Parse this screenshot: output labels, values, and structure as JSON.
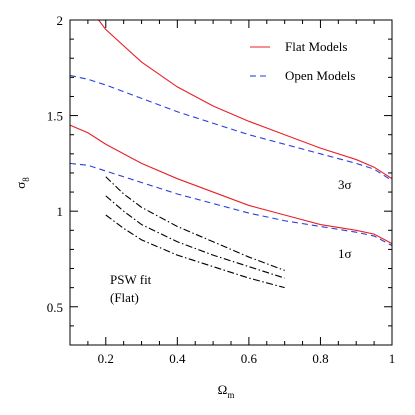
{
  "chart_data": {
    "type": "line",
    "title": "",
    "xlabel": "Ω",
    "xlabel_sub": "m",
    "ylabel": "σ",
    "ylabel_sub": "8",
    "xlim": [
      0.1,
      1.0
    ],
    "ylim": [
      0.3,
      2.0
    ],
    "xticks": [
      0.2,
      0.4,
      0.6,
      0.8,
      1.0
    ],
    "xtick_labels": [
      "0.2",
      "0.4",
      "0.6",
      "0.8",
      "1"
    ],
    "yticks": [
      0.5,
      1.0,
      1.5,
      2.0
    ],
    "ytick_labels": [
      "0.5",
      "1",
      "1.5",
      "2"
    ],
    "grid": false,
    "legend_position": "top-right",
    "legend": [
      {
        "label": "Flat Models",
        "color": "#e8202a",
        "dash": "solid"
      },
      {
        "label": "Open Models",
        "color": "#2a3fd8",
        "dash": "dashed"
      }
    ],
    "annotations": [
      {
        "text": "3σ",
        "x": 0.95,
        "y": 1.13
      },
      {
        "text": "1σ",
        "x": 0.95,
        "y": 0.83
      },
      {
        "text": "PSW fit",
        "x": 0.28,
        "y": 0.56
      },
      {
        "text": "(Flat)",
        "x": 0.28,
        "y": 0.47
      }
    ],
    "series": [
      {
        "group": "Flat Models",
        "level": "3σ",
        "color": "#e8202a",
        "dash": "solid",
        "x": [
          0.18,
          0.2,
          0.3,
          0.4,
          0.5,
          0.6,
          0.7,
          0.8,
          0.9,
          0.95,
          1.0
        ],
        "y": [
          2.0,
          1.95,
          1.78,
          1.65,
          1.55,
          1.47,
          1.4,
          1.33,
          1.27,
          1.23,
          1.17
        ]
      },
      {
        "group": "Flat Models",
        "level": "1σ",
        "color": "#e8202a",
        "dash": "solid",
        "x": [
          0.1,
          0.15,
          0.2,
          0.3,
          0.4,
          0.5,
          0.6,
          0.7,
          0.8,
          0.9,
          0.95,
          1.0
        ],
        "y": [
          1.45,
          1.41,
          1.35,
          1.25,
          1.17,
          1.1,
          1.03,
          0.98,
          0.93,
          0.9,
          0.88,
          0.83
        ]
      },
      {
        "group": "Open Models",
        "level": "3σ",
        "color": "#2a3fd8",
        "dash": "dashed",
        "x": [
          0.1,
          0.15,
          0.2,
          0.3,
          0.4,
          0.5,
          0.6,
          0.7,
          0.8,
          0.9,
          0.95,
          1.0
        ],
        "y": [
          1.71,
          1.69,
          1.66,
          1.59,
          1.52,
          1.46,
          1.4,
          1.35,
          1.3,
          1.25,
          1.22,
          1.16
        ]
      },
      {
        "group": "Open Models",
        "level": "1σ",
        "color": "#2a3fd8",
        "dash": "dashed",
        "x": [
          0.1,
          0.15,
          0.2,
          0.3,
          0.4,
          0.5,
          0.6,
          0.7,
          0.8,
          0.9,
          0.95,
          1.0
        ],
        "y": [
          1.25,
          1.24,
          1.21,
          1.15,
          1.09,
          1.04,
          0.99,
          0.95,
          0.92,
          0.89,
          0.87,
          0.82
        ]
      },
      {
        "group": "PSW fit",
        "level": "upper",
        "color": "#000000",
        "dash": "dashdot",
        "x": [
          0.2,
          0.25,
          0.3,
          0.4,
          0.5,
          0.6,
          0.7
        ],
        "y": [
          1.18,
          1.09,
          1.02,
          0.92,
          0.84,
          0.76,
          0.69
        ]
      },
      {
        "group": "PSW fit",
        "level": "central",
        "color": "#000000",
        "dash": "dashdot",
        "x": [
          0.2,
          0.25,
          0.3,
          0.4,
          0.5,
          0.6,
          0.7
        ],
        "y": [
          1.08,
          1.0,
          0.93,
          0.84,
          0.77,
          0.71,
          0.65
        ]
      },
      {
        "group": "PSW fit",
        "level": "lower",
        "color": "#000000",
        "dash": "dashdot",
        "x": [
          0.2,
          0.25,
          0.3,
          0.4,
          0.5,
          0.6,
          0.7
        ],
        "y": [
          0.98,
          0.91,
          0.85,
          0.77,
          0.71,
          0.65,
          0.6
        ]
      }
    ]
  }
}
